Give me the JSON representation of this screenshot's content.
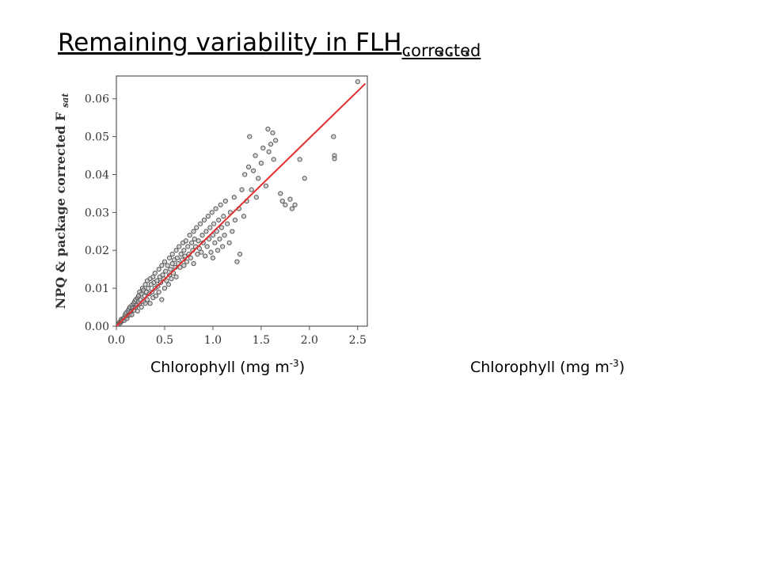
{
  "title": {
    "main": "Remaining variability in FLH",
    "subscript": "corrected"
  },
  "captions": [
    {
      "text": "Chlorophyll (mg m",
      "superscript": "-3",
      "close": ")"
    },
    {
      "text": "Chlorophyll (mg m",
      "superscript": "-3",
      "close": ")"
    }
  ],
  "colors": {
    "fit_line": "#e03030",
    "points_stroke": "#555555",
    "points_fill": "#bdbdbd",
    "axis": "#555555"
  },
  "chart_data": {
    "type": "scatter",
    "title": "",
    "xlabel": "",
    "ylabel": "NPQ & package corrected F",
    "ylabel_subscript": "sat",
    "xlim": [
      0.0,
      2.6
    ],
    "ylim": [
      0.0,
      0.066
    ],
    "xticks": [
      "0.0",
      "0.5",
      "1.0",
      "1.5",
      "2.0",
      "2.5"
    ],
    "yticks": [
      "0.00",
      "0.01",
      "0.02",
      "0.03",
      "0.04",
      "0.05",
      "0.06"
    ],
    "fit_line": {
      "x": [
        0.0,
        2.58
      ],
      "y": [
        0.0,
        0.064
      ]
    },
    "points": [
      [
        0.02,
        0.0005
      ],
      [
        0.03,
        0.001
      ],
      [
        0.04,
        0.0008
      ],
      [
        0.05,
        0.0012
      ],
      [
        0.05,
        0.0018
      ],
      [
        0.06,
        0.0015
      ],
      [
        0.07,
        0.002
      ],
      [
        0.08,
        0.0022
      ],
      [
        0.08,
        0.0015
      ],
      [
        0.09,
        0.003
      ],
      [
        0.1,
        0.0025
      ],
      [
        0.1,
        0.0035
      ],
      [
        0.11,
        0.002
      ],
      [
        0.12,
        0.004
      ],
      [
        0.12,
        0.0028
      ],
      [
        0.13,
        0.0045
      ],
      [
        0.14,
        0.003
      ],
      [
        0.14,
        0.005
      ],
      [
        0.15,
        0.0038
      ],
      [
        0.16,
        0.0055
      ],
      [
        0.16,
        0.003
      ],
      [
        0.17,
        0.0048
      ],
      [
        0.18,
        0.006
      ],
      [
        0.18,
        0.0042
      ],
      [
        0.19,
        0.0065
      ],
      [
        0.2,
        0.005
      ],
      [
        0.2,
        0.007
      ],
      [
        0.21,
        0.0055
      ],
      [
        0.22,
        0.0075
      ],
      [
        0.22,
        0.004
      ],
      [
        0.23,
        0.008
      ],
      [
        0.24,
        0.006
      ],
      [
        0.24,
        0.009
      ],
      [
        0.25,
        0.007
      ],
      [
        0.26,
        0.0085
      ],
      [
        0.26,
        0.005
      ],
      [
        0.27,
        0.01
      ],
      [
        0.28,
        0.0065
      ],
      [
        0.28,
        0.0095
      ],
      [
        0.29,
        0.008
      ],
      [
        0.3,
        0.011
      ],
      [
        0.3,
        0.006
      ],
      [
        0.31,
        0.009
      ],
      [
        0.32,
        0.012
      ],
      [
        0.32,
        0.007
      ],
      [
        0.33,
        0.01
      ],
      [
        0.34,
        0.0085
      ],
      [
        0.35,
        0.0125
      ],
      [
        0.35,
        0.006
      ],
      [
        0.36,
        0.011
      ],
      [
        0.37,
        0.009
      ],
      [
        0.38,
        0.013
      ],
      [
        0.38,
        0.0075
      ],
      [
        0.39,
        0.0115
      ],
      [
        0.4,
        0.01
      ],
      [
        0.4,
        0.014
      ],
      [
        0.41,
        0.008
      ],
      [
        0.42,
        0.012
      ],
      [
        0.43,
        0.0105
      ],
      [
        0.44,
        0.015
      ],
      [
        0.44,
        0.009
      ],
      [
        0.45,
        0.013
      ],
      [
        0.46,
        0.0115
      ],
      [
        0.47,
        0.016
      ],
      [
        0.47,
        0.007
      ],
      [
        0.48,
        0.0135
      ],
      [
        0.49,
        0.0125
      ],
      [
        0.5,
        0.017
      ],
      [
        0.5,
        0.01
      ],
      [
        0.51,
        0.0145
      ],
      [
        0.52,
        0.012
      ],
      [
        0.53,
        0.016
      ],
      [
        0.54,
        0.011
      ],
      [
        0.55,
        0.018
      ],
      [
        0.55,
        0.0135
      ],
      [
        0.56,
        0.015
      ],
      [
        0.57,
        0.0125
      ],
      [
        0.58,
        0.019
      ],
      [
        0.58,
        0.0165
      ],
      [
        0.59,
        0.014
      ],
      [
        0.6,
        0.0175
      ],
      [
        0.61,
        0.0155
      ],
      [
        0.62,
        0.02
      ],
      [
        0.62,
        0.013
      ],
      [
        0.63,
        0.018
      ],
      [
        0.64,
        0.0165
      ],
      [
        0.65,
        0.021
      ],
      [
        0.66,
        0.0155
      ],
      [
        0.67,
        0.019
      ],
      [
        0.68,
        0.0175
      ],
      [
        0.69,
        0.022
      ],
      [
        0.7,
        0.016
      ],
      [
        0.7,
        0.02
      ],
      [
        0.71,
        0.0185
      ],
      [
        0.72,
        0.0225
      ],
      [
        0.73,
        0.017
      ],
      [
        0.74,
        0.021
      ],
      [
        0.75,
        0.019
      ],
      [
        0.76,
        0.024
      ],
      [
        0.77,
        0.018
      ],
      [
        0.78,
        0.022
      ],
      [
        0.79,
        0.02
      ],
      [
        0.8,
        0.025
      ],
      [
        0.8,
        0.0165
      ],
      [
        0.81,
        0.023
      ],
      [
        0.82,
        0.021
      ],
      [
        0.83,
        0.026
      ],
      [
        0.84,
        0.019
      ],
      [
        0.85,
        0.0225
      ],
      [
        0.86,
        0.0205
      ],
      [
        0.87,
        0.027
      ],
      [
        0.88,
        0.0195
      ],
      [
        0.89,
        0.024
      ],
      [
        0.9,
        0.022
      ],
      [
        0.91,
        0.028
      ],
      [
        0.92,
        0.0185
      ],
      [
        0.93,
        0.025
      ],
      [
        0.94,
        0.021
      ],
      [
        0.95,
        0.029
      ],
      [
        0.96,
        0.023
      ],
      [
        0.97,
        0.026
      ],
      [
        0.98,
        0.0195
      ],
      [
        0.99,
        0.03
      ],
      [
        1.0,
        0.024
      ],
      [
        1.0,
        0.018
      ],
      [
        1.01,
        0.027
      ],
      [
        1.02,
        0.022
      ],
      [
        1.03,
        0.031
      ],
      [
        1.04,
        0.025
      ],
      [
        1.05,
        0.02
      ],
      [
        1.06,
        0.028
      ],
      [
        1.07,
        0.023
      ],
      [
        1.08,
        0.032
      ],
      [
        1.09,
        0.026
      ],
      [
        1.1,
        0.021
      ],
      [
        1.11,
        0.029
      ],
      [
        1.12,
        0.024
      ],
      [
        1.13,
        0.033
      ],
      [
        1.15,
        0.027
      ],
      [
        1.17,
        0.022
      ],
      [
        1.18,
        0.03
      ],
      [
        1.2,
        0.025
      ],
      [
        1.22,
        0.034
      ],
      [
        1.23,
        0.028
      ],
      [
        1.25,
        0.017
      ],
      [
        1.27,
        0.031
      ],
      [
        1.28,
        0.019
      ],
      [
        1.3,
        0.036
      ],
      [
        1.32,
        0.029
      ],
      [
        1.33,
        0.04
      ],
      [
        1.35,
        0.033
      ],
      [
        1.37,
        0.042
      ],
      [
        1.38,
        0.05
      ],
      [
        1.4,
        0.036
      ],
      [
        1.42,
        0.041
      ],
      [
        1.44,
        0.045
      ],
      [
        1.45,
        0.034
      ],
      [
        1.47,
        0.039
      ],
      [
        1.5,
        0.043
      ],
      [
        1.52,
        0.047
      ],
      [
        1.55,
        0.037
      ],
      [
        1.57,
        0.052
      ],
      [
        1.58,
        0.046
      ],
      [
        1.6,
        0.048
      ],
      [
        1.62,
        0.051
      ],
      [
        1.63,
        0.044
      ],
      [
        1.65,
        0.049
      ],
      [
        1.7,
        0.035
      ],
      [
        1.72,
        0.033
      ],
      [
        1.75,
        0.032
      ],
      [
        1.8,
        0.0335
      ],
      [
        1.82,
        0.031
      ],
      [
        1.85,
        0.032
      ],
      [
        1.9,
        0.044
      ],
      [
        1.95,
        0.039
      ],
      [
        2.25,
        0.05
      ],
      [
        2.26,
        0.045
      ],
      [
        2.26,
        0.0442
      ],
      [
        2.5,
        0.0645
      ]
    ]
  }
}
